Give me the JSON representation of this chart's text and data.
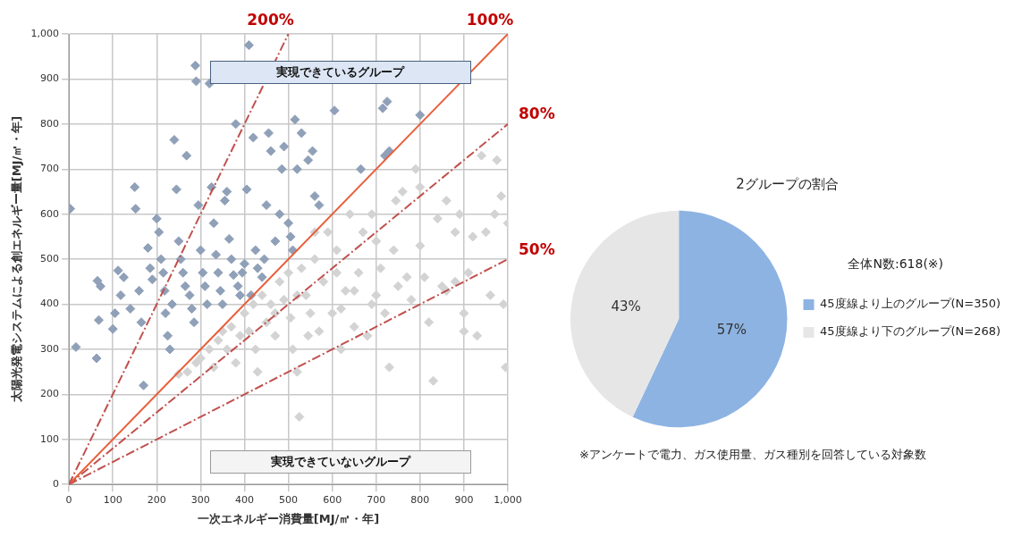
{
  "chart_data": [
    {
      "type": "scatter",
      "xlabel": "一次エネルギー消費量[MJ/㎡・年]",
      "ylabel": "太陽光発電システムによる創エネルギー量[MJ/㎡・年]",
      "xlim": [
        0,
        1000
      ],
      "ylim": [
        0,
        1000
      ],
      "xticks": [
        0,
        100,
        200,
        300,
        400,
        500,
        600,
        700,
        800,
        900,
        {
          "value": 1000,
          "label": "1,000"
        }
      ],
      "yticks": [
        0,
        100,
        200,
        300,
        400,
        500,
        600,
        700,
        800,
        900,
        {
          "value": 1000,
          "label": "1,000"
        }
      ],
      "grid": true,
      "legend": false,
      "marker": "diamond",
      "annotations": [
        "実現できているグループ",
        "実現できていないグループ"
      ],
      "series": [
        {
          "color": "#8fa0b8",
          "x": [
            3,
            16,
            65,
            72,
            68,
            63,
            100,
            105,
            112,
            118,
            125,
            140,
            150,
            152,
            160,
            165,
            170,
            180,
            185,
            190,
            200,
            205,
            210,
            215,
            218,
            220,
            225,
            230,
            235,
            240,
            245,
            250,
            255,
            260,
            265,
            268,
            275,
            280,
            285,
            288,
            290,
            295,
            300,
            305,
            310,
            315,
            320,
            325,
            330,
            335,
            340,
            345,
            350,
            355,
            360,
            365,
            370,
            375,
            380,
            385,
            390,
            395,
            400,
            405,
            410,
            415,
            420,
            425,
            430,
            440,
            445,
            450,
            455,
            460,
            470,
            480,
            485,
            490,
            500,
            505,
            510,
            515,
            520,
            530,
            545,
            555,
            560,
            570,
            605,
            665,
            715,
            725,
            800,
            720,
            730
          ],
          "values": [
            612,
            305,
            452,
            440,
            365,
            280,
            345,
            380,
            475,
            420,
            460,
            390,
            660,
            612,
            430,
            360,
            220,
            525,
            480,
            455,
            590,
            560,
            500,
            470,
            430,
            380,
            330,
            300,
            400,
            765,
            655,
            540,
            500,
            470,
            440,
            730,
            420,
            390,
            360,
            930,
            895,
            620,
            520,
            470,
            440,
            400,
            890,
            660,
            580,
            510,
            470,
            430,
            400,
            630,
            650,
            545,
            500,
            465,
            800,
            440,
            420,
            470,
            490,
            655,
            975,
            420,
            770,
            520,
            480,
            460,
            500,
            620,
            780,
            740,
            540,
            600,
            700,
            750,
            580,
            550,
            520,
            810,
            700,
            780,
            720,
            740,
            640,
            620,
            830,
            700,
            835,
            850,
            820,
            730,
            740
          ]
        },
        {
          "color": "#d3d3d3",
          "x": [
            250,
            270,
            290,
            300,
            320,
            330,
            340,
            350,
            360,
            370,
            380,
            390,
            400,
            410,
            420,
            425,
            430,
            440,
            450,
            460,
            470,
            480,
            490,
            500,
            505,
            510,
            520,
            525,
            530,
            540,
            550,
            560,
            570,
            580,
            590,
            600,
            610,
            620,
            630,
            640,
            650,
            660,
            670,
            680,
            690,
            700,
            710,
            720,
            730,
            740,
            750,
            760,
            770,
            780,
            800,
            810,
            820,
            830,
            840,
            850,
            860,
            880,
            890,
            900,
            910,
            920,
            930,
            940,
            950,
            960,
            975,
            985,
            990,
            995,
            1000,
            970,
            900,
            860,
            790,
            745,
            690,
            560,
            610,
            650,
            700,
            470,
            520,
            545,
            620,
            800,
            880
          ],
          "values": [
            245,
            250,
            270,
            280,
            300,
            260,
            320,
            340,
            300,
            350,
            270,
            330,
            380,
            340,
            400,
            300,
            250,
            420,
            360,
            400,
            330,
            450,
            410,
            470,
            370,
            300,
            250,
            150,
            480,
            420,
            380,
            500,
            340,
            450,
            560,
            380,
            520,
            300,
            430,
            600,
            350,
            470,
            560,
            330,
            400,
            420,
            480,
            380,
            260,
            520,
            440,
            650,
            460,
            410,
            660,
            460,
            360,
            230,
            590,
            440,
            430,
            560,
            600,
            340,
            470,
            550,
            330,
            730,
            560,
            420,
            720,
            640,
            400,
            260,
            580,
            600,
            380,
            630,
            700,
            630,
            600,
            560,
            470,
            430,
            540,
            380,
            420,
            330,
            390,
            530,
            450
          ]
        },
        {
          "type": "line",
          "name": "200%",
          "color": "#c0504d",
          "line_style": "dashed",
          "marker": "none",
          "x": [
            0,
            500
          ],
          "values": [
            0,
            1000
          ]
        },
        {
          "type": "line",
          "name": "100%",
          "color": "#e8603c",
          "line_style": "solid",
          "marker": "none",
          "x": [
            0,
            1000
          ],
          "values": [
            0,
            1000
          ]
        },
        {
          "type": "line",
          "name": "80%",
          "color": "#c0504d",
          "line_style": "dashed",
          "marker": "none",
          "x": [
            0,
            1000
          ],
          "values": [
            0,
            800
          ]
        },
        {
          "type": "line",
          "name": "50%",
          "color": "#c0504d",
          "line_style": "dashed",
          "marker": "none",
          "x": [
            0,
            1000
          ],
          "values": [
            0,
            500
          ]
        }
      ]
    },
    {
      "type": "pie",
      "title": "2グループの割合",
      "legend_title": "全体N数:618(※)",
      "legend": "right",
      "categories": [
        "45度線より上のグループ(N=350)",
        "45度線より下のグループ(N=268)"
      ],
      "values": [
        57,
        43
      ],
      "colors": [
        "#8db3e2",
        "#e6e6e6"
      ],
      "value_labels": [
        "57%",
        "43%"
      ],
      "annotations": [
        "※アンケートで電力、ガス使用量、ガス種別を回答している対象数"
      ]
    }
  ]
}
